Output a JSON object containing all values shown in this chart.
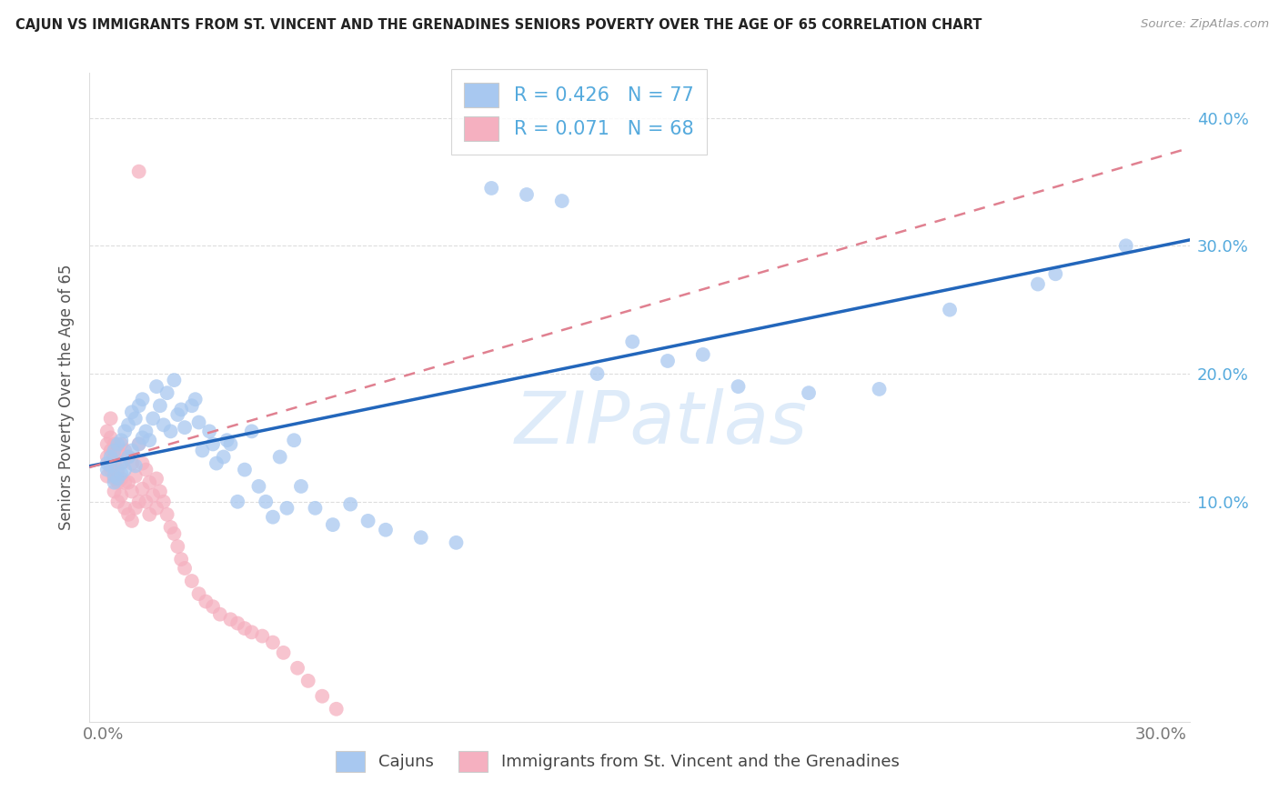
{
  "title": "CAJUN VS IMMIGRANTS FROM ST. VINCENT AND THE GRENADINES SENIORS POVERTY OVER THE AGE OF 65 CORRELATION CHART",
  "source": "Source: ZipAtlas.com",
  "ylabel": "Seniors Poverty Over the Age of 65",
  "xlim_min": -0.004,
  "xlim_max": 0.308,
  "ylim_min": -0.072,
  "ylim_max": 0.435,
  "ytick_positions": [
    0.1,
    0.2,
    0.3,
    0.4
  ],
  "ytick_labels": [
    "10.0%",
    "20.0%",
    "30.0%",
    "40.0%"
  ],
  "xtick_positions": [
    0.0,
    0.05,
    0.1,
    0.15,
    0.2,
    0.25,
    0.3
  ],
  "xtick_labels": [
    "0.0%",
    "",
    "",
    "",
    "",
    "",
    "30.0%"
  ],
  "legend_r_cajun": "0.426",
  "legend_n_cajun": "77",
  "legend_r_svg": "0.071",
  "legend_n_svg": "68",
  "cajun_color": "#a8c8f0",
  "svg_color": "#f5b0c0",
  "cajun_line_color": "#2266bb",
  "svg_line_color": "#e08090",
  "title_color": "#222222",
  "source_color": "#999999",
  "axis_color": "#cccccc",
  "grid_color": "#dddddd",
  "right_label_color": "#55aadd",
  "legend_text_color": "#55aadd",
  "watermark_text": "ZIPatlas",
  "watermark_color": "#c8dff5",
  "bottom_label_cajun": "Cajuns",
  "bottom_label_svg": "Immigrants from St. Vincent and the Grenadines",
  "cajun_x": [
    0.001,
    0.001,
    0.002,
    0.002,
    0.003,
    0.003,
    0.003,
    0.004,
    0.004,
    0.005,
    0.005,
    0.005,
    0.006,
    0.006,
    0.007,
    0.007,
    0.008,
    0.008,
    0.009,
    0.009,
    0.01,
    0.01,
    0.011,
    0.011,
    0.012,
    0.013,
    0.014,
    0.015,
    0.016,
    0.017,
    0.018,
    0.019,
    0.02,
    0.021,
    0.022,
    0.023,
    0.025,
    0.026,
    0.027,
    0.028,
    0.03,
    0.031,
    0.032,
    0.034,
    0.035,
    0.036,
    0.038,
    0.04,
    0.042,
    0.044,
    0.046,
    0.048,
    0.05,
    0.052,
    0.054,
    0.056,
    0.06,
    0.065,
    0.07,
    0.075,
    0.08,
    0.09,
    0.1,
    0.11,
    0.12,
    0.13,
    0.14,
    0.15,
    0.16,
    0.17,
    0.18,
    0.2,
    0.22,
    0.24,
    0.265,
    0.27,
    0.29
  ],
  "cajun_y": [
    0.13,
    0.125,
    0.135,
    0.128,
    0.12,
    0.115,
    0.14,
    0.118,
    0.145,
    0.122,
    0.148,
    0.13,
    0.155,
    0.125,
    0.16,
    0.135,
    0.17,
    0.14,
    0.165,
    0.128,
    0.175,
    0.145,
    0.18,
    0.15,
    0.155,
    0.148,
    0.165,
    0.19,
    0.175,
    0.16,
    0.185,
    0.155,
    0.195,
    0.168,
    0.172,
    0.158,
    0.175,
    0.18,
    0.162,
    0.14,
    0.155,
    0.145,
    0.13,
    0.135,
    0.148,
    0.145,
    0.1,
    0.125,
    0.155,
    0.112,
    0.1,
    0.088,
    0.135,
    0.095,
    0.148,
    0.112,
    0.095,
    0.082,
    0.098,
    0.085,
    0.078,
    0.072,
    0.068,
    0.345,
    0.34,
    0.335,
    0.2,
    0.225,
    0.21,
    0.215,
    0.19,
    0.185,
    0.188,
    0.25,
    0.27,
    0.278,
    0.3
  ],
  "svg_x": [
    0.001,
    0.001,
    0.001,
    0.001,
    0.002,
    0.002,
    0.002,
    0.002,
    0.003,
    0.003,
    0.003,
    0.003,
    0.003,
    0.004,
    0.004,
    0.004,
    0.004,
    0.005,
    0.005,
    0.005,
    0.005,
    0.006,
    0.006,
    0.006,
    0.007,
    0.007,
    0.007,
    0.008,
    0.008,
    0.008,
    0.009,
    0.009,
    0.01,
    0.01,
    0.01,
    0.011,
    0.011,
    0.012,
    0.012,
    0.013,
    0.013,
    0.014,
    0.015,
    0.015,
    0.016,
    0.017,
    0.018,
    0.019,
    0.02,
    0.021,
    0.022,
    0.023,
    0.025,
    0.027,
    0.029,
    0.031,
    0.033,
    0.036,
    0.038,
    0.04,
    0.042,
    0.045,
    0.048,
    0.051,
    0.055,
    0.058,
    0.062,
    0.066
  ],
  "svg_y": [
    0.145,
    0.135,
    0.155,
    0.12,
    0.15,
    0.14,
    0.165,
    0.125,
    0.13,
    0.145,
    0.118,
    0.135,
    0.108,
    0.14,
    0.125,
    0.115,
    0.1,
    0.145,
    0.13,
    0.118,
    0.105,
    0.14,
    0.115,
    0.095,
    0.135,
    0.115,
    0.09,
    0.13,
    0.108,
    0.085,
    0.12,
    0.095,
    0.358,
    0.145,
    0.1,
    0.13,
    0.11,
    0.125,
    0.1,
    0.115,
    0.09,
    0.105,
    0.118,
    0.095,
    0.108,
    0.1,
    0.09,
    0.08,
    0.075,
    0.065,
    0.055,
    0.048,
    0.038,
    0.028,
    0.022,
    0.018,
    0.012,
    0.008,
    0.005,
    0.001,
    -0.002,
    -0.005,
    -0.01,
    -0.018,
    -0.03,
    -0.04,
    -0.052,
    -0.062
  ]
}
